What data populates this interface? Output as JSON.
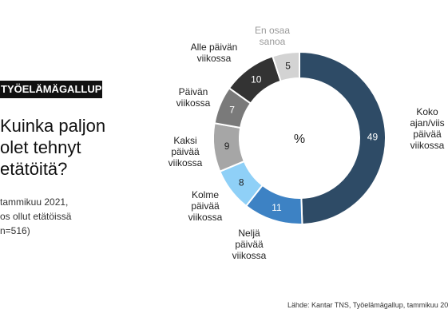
{
  "header": {
    "tag": "TYÖELÄMÄGALLUP",
    "title_lines": [
      "Kuinka paljon",
      "olet tehnyt",
      "etätöitä?"
    ],
    "subtitle_lines": [
      "tammikuu 2021,",
      "os ollut etätöissä",
      "n=516)"
    ]
  },
  "source": "Lähde: Kantar TNS, Työelämägallup, tammikuu 20",
  "chart_data": {
    "type": "donut",
    "center_label": "%",
    "slices": [
      {
        "label_lines": [
          "Koko",
          "ajan/viis",
          "päivää",
          "viikossa"
        ],
        "value": 49,
        "color": "#2e4b66"
      },
      {
        "label_lines": [
          "Neljä",
          "päivää",
          "viikossa"
        ],
        "value": 11,
        "color": "#3d82c4"
      },
      {
        "label_lines": [
          "Kolme",
          "päivää",
          "viikossa"
        ],
        "value": 8,
        "color": "#8fd0f7"
      },
      {
        "label_lines": [
          "Kaksi",
          "päivää",
          "viikossa"
        ],
        "value": 9,
        "color": "#a6a6a6"
      },
      {
        "label_lines": [
          "Päivän",
          "viikossa"
        ],
        "value": 7,
        "color": "#7a7a7a"
      },
      {
        "label_lines": [
          "Alle päivän",
          "viikossa"
        ],
        "value": 10,
        "color": "#333333"
      },
      {
        "label_lines": [
          "En osaa",
          "sanoa"
        ],
        "value": 5,
        "color": "#d3d3d3"
      }
    ]
  }
}
